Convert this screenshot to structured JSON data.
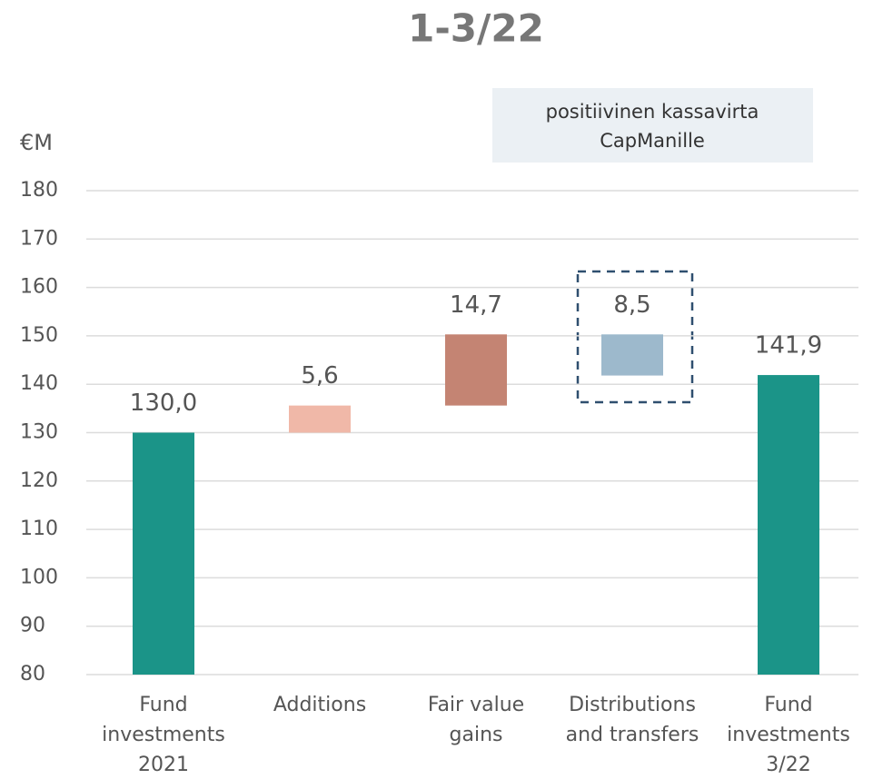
{
  "chart_data": {
    "type": "waterfall",
    "title": "1-3/22",
    "y_axis_label": "€M",
    "annotation": [
      "positiivinen kassavirta",
      "CapManille"
    ],
    "categories": [
      [
        "Fund",
        "investments",
        "2021"
      ],
      [
        "Additions"
      ],
      [
        "Fair value",
        "gains"
      ],
      [
        "Distributions",
        "and transfers"
      ],
      [
        "Fund",
        "investments",
        "3/22"
      ]
    ],
    "values": [
      130.0,
      5.6,
      14.7,
      -8.5,
      141.9
    ],
    "value_labels": [
      "130,0",
      "5,6",
      "14,7",
      "8,5",
      "141,9"
    ],
    "measures": [
      "total",
      "relative",
      "relative",
      "relative",
      "total"
    ],
    "colors": [
      "#1b9488",
      "#f0b8a8",
      "#c48473",
      "#9db9cc",
      "#1b9488"
    ],
    "ylim": [
      80,
      180
    ],
    "yticks": [
      80,
      90,
      100,
      110,
      120,
      130,
      140,
      150,
      160,
      170,
      180
    ],
    "grid": true
  }
}
